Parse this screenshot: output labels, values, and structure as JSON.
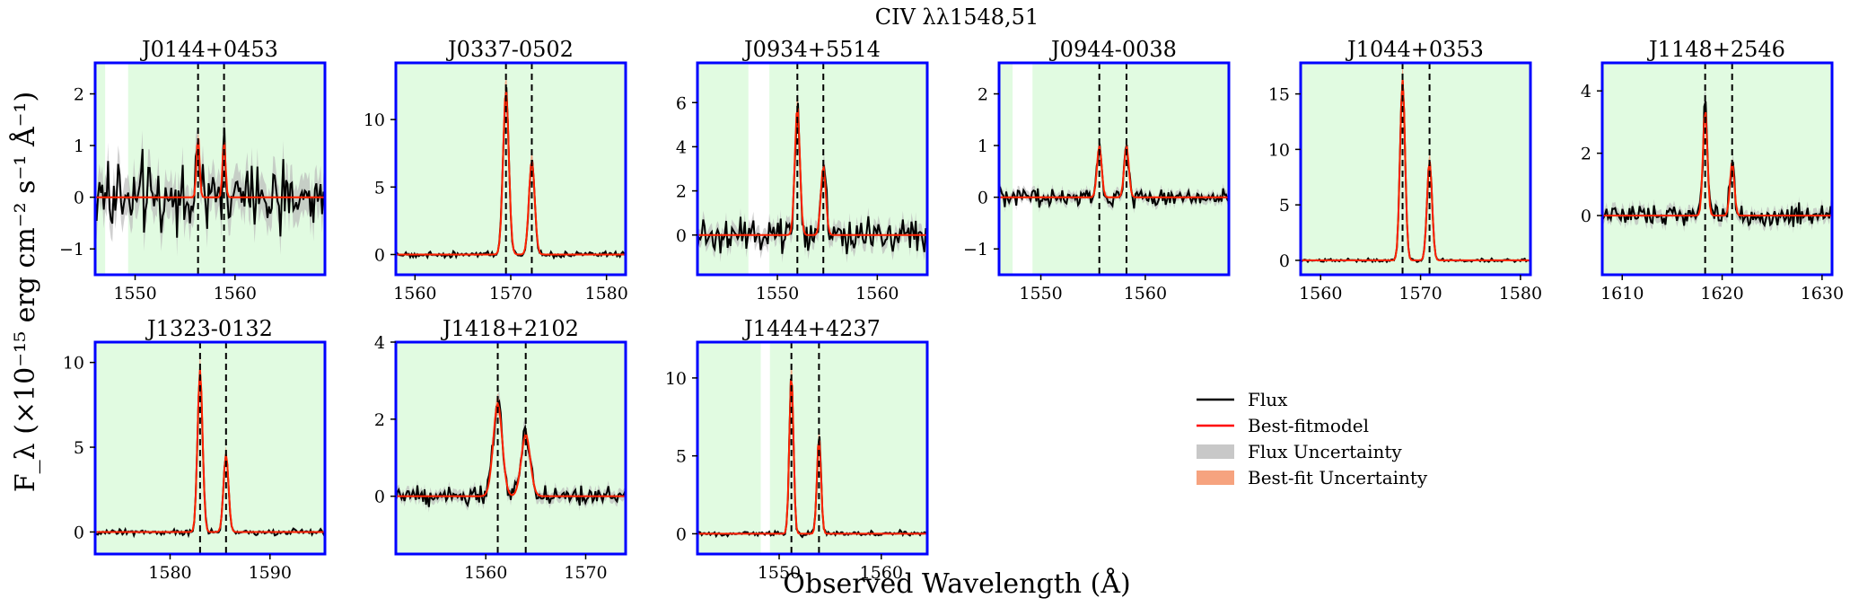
{
  "figure": {
    "suptitle": "CIV λλ1548,51",
    "ylabel": "F_λ (×10⁻¹⁵ erg cm⁻² s⁻¹ Å⁻¹)",
    "xlabel": "Observed Wavelength (Å)"
  },
  "legend": {
    "entries": [
      {
        "label": "Flux",
        "kind": "line",
        "color": "#000000"
      },
      {
        "label": "Best-fitmodel",
        "kind": "line",
        "color": "#ff0000"
      },
      {
        "label": "Flux Uncertainty",
        "kind": "patch",
        "color": "#c8c8c8"
      },
      {
        "label": "Best-fit Uncertainty",
        "kind": "patch",
        "color": "#f6a37f"
      }
    ]
  },
  "colors": {
    "axes_frame": "#0000ff",
    "shade": "#e1fbe1",
    "flux": "#000000",
    "model": "#ff2200",
    "flux_unc": "#bbbbbb",
    "model_unc": "#f5a07c"
  },
  "chart_data": [
    {
      "type": "line",
      "title": "J0144+0453",
      "xlim": [
        1546,
        1569
      ],
      "ylim": [
        -1.5,
        2.6
      ],
      "xticks": [
        1550,
        1560
      ],
      "yticks": [
        -1,
        0,
        1,
        2
      ],
      "lines": [
        1556.3,
        1558.9
      ],
      "unshaded": [
        [
          1547.0,
          1549.3
        ]
      ],
      "continuum": 0,
      "peaks": [
        {
          "x": 1556.3,
          "a": 1.2,
          "w": 0.15
        },
        {
          "x": 1558.9,
          "a": 1.1,
          "w": 0.15
        }
      ],
      "noise": 0.45
    },
    {
      "type": "line",
      "title": "J0337-0502",
      "xlim": [
        1558,
        1582
      ],
      "ylim": [
        -1.5,
        14.2
      ],
      "xticks": [
        1560,
        1570,
        1580
      ],
      "yticks": [
        0,
        5,
        10
      ],
      "lines": [
        1569.5,
        1572.2
      ],
      "unshaded": [],
      "continuum": 0,
      "peaks": [
        {
          "x": 1569.5,
          "a": 12.2,
          "w": 0.3
        },
        {
          "x": 1572.2,
          "a": 7.0,
          "w": 0.3
        }
      ],
      "noise": 0.15
    },
    {
      "type": "line",
      "title": "J0934+5514",
      "xlim": [
        1542,
        1565
      ],
      "ylim": [
        -1.8,
        7.8
      ],
      "xticks": [
        1550,
        1560
      ],
      "yticks": [
        0,
        2,
        4,
        6
      ],
      "lines": [
        1552.0,
        1554.6
      ],
      "unshaded": [
        [
          1547.1,
          1549.2
        ]
      ],
      "continuum": 0,
      "peaks": [
        {
          "x": 1552.0,
          "a": 5.8,
          "w": 0.25
        },
        {
          "x": 1554.6,
          "a": 3.1,
          "w": 0.25
        }
      ],
      "noise": 0.5
    },
    {
      "type": "line",
      "title": "J0944-0038",
      "xlim": [
        1546,
        1568
      ],
      "ylim": [
        -1.5,
        2.6
      ],
      "xticks": [
        1550,
        1560
      ],
      "yticks": [
        -1,
        0,
        1,
        2
      ],
      "lines": [
        1555.6,
        1558.2
      ],
      "unshaded": [
        [
          1547.3,
          1549.2
        ]
      ],
      "continuum": 0,
      "peaks": [
        {
          "x": 1555.6,
          "a": 1.0,
          "w": 0.22
        },
        {
          "x": 1558.2,
          "a": 1.0,
          "w": 0.22
        }
      ],
      "noise": 0.12
    },
    {
      "type": "line",
      "title": "J1044+0353",
      "xlim": [
        1558,
        1581
      ],
      "ylim": [
        -1.3,
        17.8
      ],
      "xticks": [
        1560,
        1570,
        1580
      ],
      "yticks": [
        0,
        5,
        10,
        15
      ],
      "lines": [
        1568.2,
        1570.9
      ],
      "unshaded": [],
      "continuum": 0,
      "peaks": [
        {
          "x": 1568.2,
          "a": 16.3,
          "w": 0.25
        },
        {
          "x": 1570.9,
          "a": 9.0,
          "w": 0.25
        }
      ],
      "noise": 0.1
    },
    {
      "type": "line",
      "title": "J1148+2546",
      "xlim": [
        1608,
        1631
      ],
      "ylim": [
        -1.9,
        4.9
      ],
      "xticks": [
        1610,
        1620,
        1630
      ],
      "yticks": [
        0,
        2,
        4
      ],
      "lines": [
        1618.3,
        1621.0
      ],
      "unshaded": [],
      "continuum": 0,
      "peaks": [
        {
          "x": 1618.3,
          "a": 3.4,
          "w": 0.22
        },
        {
          "x": 1621.0,
          "a": 1.7,
          "w": 0.22
        }
      ],
      "noise": 0.25
    },
    {
      "type": "line",
      "title": "J1323-0132",
      "xlim": [
        1572.5,
        1595.5
      ],
      "ylim": [
        -1.3,
        11.2
      ],
      "xticks": [
        1580,
        1590
      ],
      "yticks": [
        0,
        5,
        10
      ],
      "lines": [
        1583.0,
        1585.6
      ],
      "unshaded": [],
      "continuum": 0,
      "peaks": [
        {
          "x": 1583.0,
          "a": 9.6,
          "w": 0.25
        },
        {
          "x": 1585.6,
          "a": 4.6,
          "w": 0.25
        }
      ],
      "noise": 0.12
    },
    {
      "type": "line",
      "title": "J1418+2102",
      "xlim": [
        1551,
        1574
      ],
      "ylim": [
        -1.5,
        4.0
      ],
      "xticks": [
        1560,
        1570
      ],
      "yticks": [
        0,
        2,
        4
      ],
      "lines": [
        1561.2,
        1564.0
      ],
      "unshaded": [],
      "continuum": 0,
      "peaks": [
        {
          "x": 1561.2,
          "a": 2.4,
          "w": 0.45
        },
        {
          "x": 1564.0,
          "a": 1.6,
          "w": 0.45
        }
      ],
      "noise": 0.18
    },
    {
      "type": "line",
      "title": "J1444+4237",
      "xlim": [
        1542,
        1564.5
      ],
      "ylim": [
        -1.3,
        12.3
      ],
      "xticks": [
        1550,
        1560
      ],
      "yticks": [
        0,
        5,
        10
      ],
      "lines": [
        1551.2,
        1553.9
      ],
      "unshaded": [
        [
          1548.2,
          1549.1
        ]
      ],
      "continuum": 0,
      "peaks": [
        {
          "x": 1551.2,
          "a": 10.3,
          "w": 0.2
        },
        {
          "x": 1553.9,
          "a": 6.2,
          "w": 0.2
        }
      ],
      "noise": 0.12
    }
  ]
}
